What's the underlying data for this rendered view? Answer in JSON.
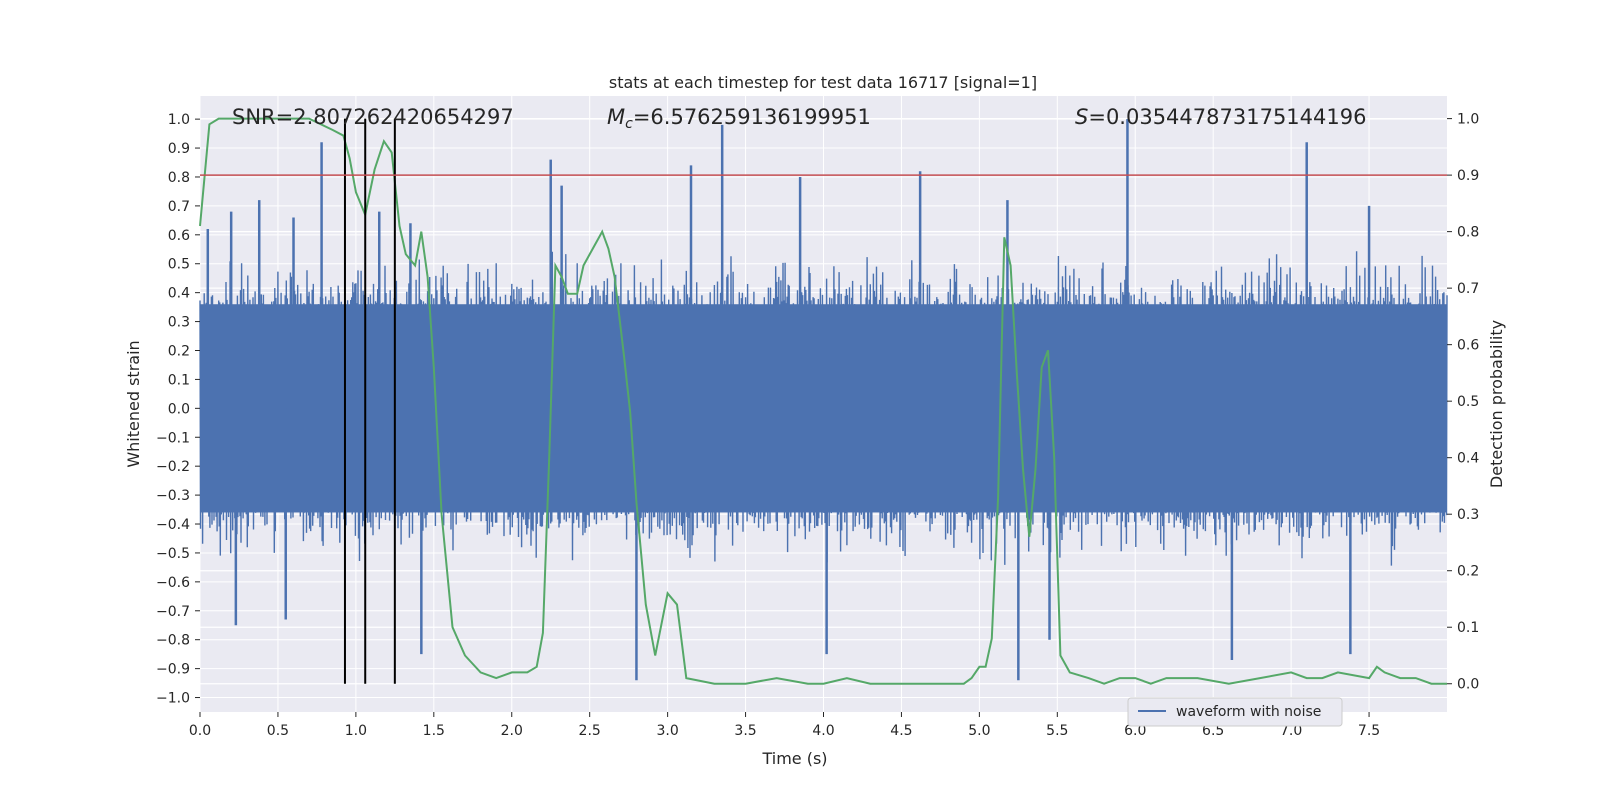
{
  "chart_data": {
    "type": "line",
    "title": "stats at each timestep for test data 16717 [signal=1]",
    "xlabel": "Time (s)",
    "ylabel": "Whitened strain",
    "ylabel_right": "Detection probability",
    "xlim": [
      0.0,
      8.0
    ],
    "ylim": [
      -1.05,
      1.08
    ],
    "ylim_right": [
      -0.05,
      1.04
    ],
    "x_ticks": [
      0.0,
      0.5,
      1.0,
      1.5,
      2.0,
      2.5,
      3.0,
      3.5,
      4.0,
      4.5,
      5.0,
      5.5,
      6.0,
      6.5,
      7.0,
      7.5
    ],
    "x_tick_labels": [
      "0.0",
      "0.5",
      "1.0",
      "1.5",
      "2.0",
      "2.5",
      "3.0",
      "3.5",
      "4.0",
      "4.5",
      "5.0",
      "5.5",
      "6.0",
      "6.5",
      "7.0",
      "7.5"
    ],
    "y_ticks": [
      1.0,
      0.9,
      0.8,
      0.7,
      0.6,
      0.5,
      0.4,
      0.3,
      0.2,
      0.1,
      0.0,
      -0.1,
      -0.2,
      -0.3,
      -0.4,
      -0.5,
      -0.6,
      -0.7,
      -0.8,
      -0.9,
      -1.0
    ],
    "y_tick_labels": [
      "1.0",
      "0.9",
      "0.8",
      "0.7",
      "0.6",
      "0.5",
      "0.4",
      "0.3",
      "0.2",
      "0.1",
      "0.0",
      "−0.1",
      "−0.2",
      "−0.3",
      "−0.4",
      "−0.5",
      "−0.6",
      "−0.7",
      "−0.8",
      "−0.9",
      "−1.0"
    ],
    "y2_ticks": [
      1.0,
      0.9,
      0.8,
      0.7,
      0.6,
      0.5,
      0.4,
      0.3,
      0.2,
      0.1,
      0.0
    ],
    "y2_tick_labels": [
      "1.0",
      "0.9",
      "0.8",
      "0.7",
      "0.6",
      "0.5",
      "0.4",
      "0.3",
      "0.2",
      "0.1",
      "0.0"
    ],
    "grid": true,
    "legend": {
      "position": "bottom-right",
      "entries": [
        "waveform with noise"
      ]
    },
    "annotations": {
      "snr": "SNR=2.807262420654297",
      "mc_label": "M",
      "mc_sub": "c",
      "mc_value": "=6.576259136199951",
      "s_label": "S",
      "s_value": "=0.035447873175144196"
    },
    "threshold": {
      "value": 0.9,
      "axis": "right",
      "color": "#c44e52"
    },
    "markers": [
      0.93,
      1.06,
      1.25
    ],
    "series": [
      {
        "name": "waveform with noise",
        "axis": "left",
        "color": "#4c72b0",
        "spikes": [
          [
            0.05,
            0.62
          ],
          [
            0.2,
            0.68
          ],
          [
            0.38,
            0.72
          ],
          [
            0.6,
            0.66
          ],
          [
            0.78,
            0.92
          ],
          [
            1.15,
            0.68
          ],
          [
            1.35,
            0.64
          ],
          [
            2.25,
            0.86
          ],
          [
            2.32,
            0.77
          ],
          [
            3.15,
            0.84
          ],
          [
            3.35,
            0.98
          ],
          [
            3.85,
            0.8
          ],
          [
            4.62,
            0.82
          ],
          [
            5.18,
            0.72
          ],
          [
            5.95,
            1.0
          ],
          [
            7.1,
            0.92
          ],
          [
            7.5,
            0.7
          ],
          [
            0.23,
            -0.75
          ],
          [
            0.55,
            -0.73
          ],
          [
            1.42,
            -0.85
          ],
          [
            2.8,
            -0.94
          ],
          [
            4.02,
            -0.85
          ],
          [
            5.25,
            -0.94
          ],
          [
            5.45,
            -0.8
          ],
          [
            6.62,
            -0.87
          ],
          [
            7.38,
            -0.85
          ]
        ],
        "core_amplitude": 0.36,
        "fringe_amplitude": 0.55
      },
      {
        "name": "detection probability",
        "axis": "right",
        "color": "#55a868",
        "x": [
          0.0,
          0.06,
          0.12,
          0.25,
          0.5,
          0.7,
          0.85,
          0.92,
          0.96,
          1.0,
          1.06,
          1.12,
          1.18,
          1.23,
          1.28,
          1.32,
          1.38,
          1.42,
          1.46,
          1.5,
          1.55,
          1.62,
          1.7,
          1.8,
          1.9,
          2.0,
          2.06,
          2.1,
          2.16,
          2.2,
          2.24,
          2.28,
          2.32,
          2.36,
          2.42,
          2.46,
          2.52,
          2.58,
          2.62,
          2.66,
          2.72,
          2.76,
          2.8,
          2.86,
          2.92,
          3.0,
          3.06,
          3.12,
          3.3,
          3.5,
          3.7,
          3.9,
          4.0,
          4.15,
          4.3,
          4.6,
          4.9,
          4.95,
          5.0,
          5.04,
          5.08,
          5.12,
          5.16,
          5.2,
          5.24,
          5.28,
          5.32,
          5.36,
          5.4,
          5.44,
          5.48,
          5.52,
          5.58,
          5.7,
          5.8,
          5.9,
          6.0,
          6.1,
          6.2,
          6.4,
          6.6,
          6.8,
          7.0,
          7.1,
          7.2,
          7.3,
          7.5,
          7.55,
          7.6,
          7.7,
          7.8,
          7.9,
          8.0
        ],
        "y": [
          0.81,
          0.99,
          1.0,
          1.0,
          1.0,
          1.0,
          0.98,
          0.97,
          0.93,
          0.87,
          0.83,
          0.91,
          0.96,
          0.94,
          0.81,
          0.76,
          0.74,
          0.8,
          0.72,
          0.56,
          0.3,
          0.1,
          0.05,
          0.02,
          0.01,
          0.02,
          0.02,
          0.02,
          0.03,
          0.09,
          0.4,
          0.74,
          0.72,
          0.69,
          0.69,
          0.74,
          0.77,
          0.8,
          0.77,
          0.72,
          0.58,
          0.48,
          0.32,
          0.14,
          0.05,
          0.16,
          0.14,
          0.01,
          0.0,
          0.0,
          0.01,
          0.0,
          0.0,
          0.01,
          0.0,
          0.0,
          0.0,
          0.01,
          0.03,
          0.03,
          0.08,
          0.33,
          0.79,
          0.74,
          0.55,
          0.38,
          0.26,
          0.38,
          0.56,
          0.59,
          0.4,
          0.05,
          0.02,
          0.01,
          0.0,
          0.01,
          0.01,
          0.0,
          0.01,
          0.01,
          0.0,
          0.01,
          0.02,
          0.01,
          0.01,
          0.02,
          0.01,
          0.03,
          0.02,
          0.01,
          0.01,
          0.0,
          0.0
        ]
      }
    ]
  }
}
